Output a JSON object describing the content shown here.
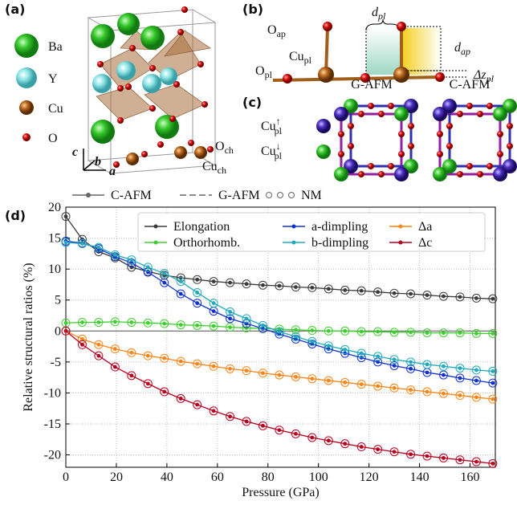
{
  "panel_a": {
    "label": "(a)",
    "species": [
      "Ba",
      "Y",
      "Cu",
      "O"
    ],
    "axes": [
      "c",
      "b",
      "a"
    ],
    "site_labels": [
      {
        "base": "O",
        "sub": "ch"
      },
      {
        "base": "Cu",
        "sub": "ch"
      }
    ]
  },
  "panel_b": {
    "label": "(b)",
    "o_ap": {
      "base": "O",
      "sub": "ap"
    },
    "cu_pl": {
      "base": "Cu",
      "sub": "pl"
    },
    "o_pl": {
      "base": "O",
      "sub": "pl"
    },
    "d_pl": {
      "base": "d",
      "sub": "pl"
    },
    "d_ap": {
      "base": "d",
      "sub": "ap"
    },
    "dz_pl": {
      "base": "Δz",
      "sub": "pl"
    }
  },
  "panel_c": {
    "label": "(c)",
    "spin_up": {
      "base": "Cu",
      "sup": "↑",
      "sub": "pl"
    },
    "spin_down": {
      "base": "Cu",
      "sup": "↓",
      "sub": "pl"
    },
    "orders": [
      "G-AFM",
      "C-AFM"
    ]
  },
  "chart_data": {
    "type": "line",
    "label": "(d)",
    "line_styles": [
      "C-AFM",
      "G-AFM",
      "NM"
    ],
    "xlabel": "Pressure (GPa)",
    "ylabel": "Relative structural ratios (%)",
    "xlim": [
      0,
      170
    ],
    "ylim": [
      -22,
      20
    ],
    "xticks": [
      0,
      20,
      40,
      60,
      80,
      100,
      120,
      140,
      160
    ],
    "yticks": [
      -20,
      -15,
      -10,
      -5,
      0,
      5,
      10,
      15,
      20
    ],
    "grid": true,
    "x": [
      0,
      6.5,
      13,
      19.5,
      26,
      32.5,
      39,
      45.5,
      52,
      58.5,
      65,
      71.5,
      78,
      84.5,
      91,
      97.5,
      104,
      110.5,
      117,
      123.5,
      130,
      136.5,
      143,
      149.5,
      156,
      162.5,
      169
    ],
    "series": [
      {
        "name": "Elongation",
        "color": "#3a3a3a",
        "values": [
          18.5,
          14.8,
          12.8,
          11.8,
          10.3,
          9.6,
          9.0,
          8.6,
          8.3,
          8.0,
          7.8,
          7.6,
          7.4,
          7.3,
          7.1,
          7.0,
          6.8,
          6.6,
          6.5,
          6.3,
          6.1,
          6.0,
          5.8,
          5.6,
          5.5,
          5.3,
          5.2
        ]
      },
      {
        "name": "Orthorhomb.",
        "color": "#3ecf2e",
        "values": [
          1.3,
          1.4,
          1.4,
          1.5,
          1.4,
          1.3,
          1.2,
          1.0,
          0.9,
          0.8,
          0.6,
          0.5,
          0.4,
          0.3,
          0.2,
          0.1,
          0.0,
          0.0,
          -0.1,
          -0.1,
          -0.2,
          -0.2,
          -0.3,
          -0.3,
          -0.3,
          -0.4,
          -0.4
        ]
      },
      {
        "name": "a-dimpling",
        "color": "#1030d0",
        "values": [
          14.5,
          14.2,
          13.3,
          12.0,
          11.0,
          9.5,
          7.8,
          6.0,
          4.5,
          3.2,
          2.0,
          1.2,
          0.4,
          -0.5,
          -1.3,
          -2.1,
          -2.9,
          -3.6,
          -4.3,
          -5.0,
          -5.6,
          -6.1,
          -6.7,
          -7.1,
          -7.6,
          -8.0,
          -8.4
        ]
      },
      {
        "name": "b-dimpling",
        "color": "#22aabb",
        "values": [
          14.3,
          14.1,
          13.5,
          12.3,
          11.5,
          10.3,
          9.3,
          8.0,
          6.2,
          4.5,
          3.1,
          2.0,
          0.9,
          -0.1,
          -0.9,
          -1.7,
          -2.4,
          -3.0,
          -3.6,
          -4.1,
          -4.6,
          -5.0,
          -5.4,
          -5.7,
          -6.0,
          -6.3,
          -6.5
        ]
      },
      {
        "name": "Δa",
        "color": "#ff8418",
        "values": [
          0,
          -1.3,
          -2.2,
          -2.9,
          -3.5,
          -4.0,
          -4.4,
          -4.9,
          -5.3,
          -5.7,
          -6.1,
          -6.4,
          -6.8,
          -7.1,
          -7.4,
          -7.7,
          -8.0,
          -8.3,
          -8.6,
          -8.9,
          -9.2,
          -9.5,
          -9.8,
          -10.1,
          -10.4,
          -10.7,
          -11.0
        ]
      },
      {
        "name": "Δc",
        "color": "#b8001f",
        "values": [
          0,
          -2.2,
          -4.0,
          -5.8,
          -7.2,
          -8.5,
          -9.8,
          -10.9,
          -11.9,
          -12.9,
          -13.8,
          -14.6,
          -15.3,
          -16.0,
          -16.6,
          -17.2,
          -17.7,
          -18.2,
          -18.7,
          -19.1,
          -19.5,
          -19.9,
          -20.2,
          -20.5,
          -20.8,
          -21.1,
          -21.4
        ]
      }
    ]
  }
}
